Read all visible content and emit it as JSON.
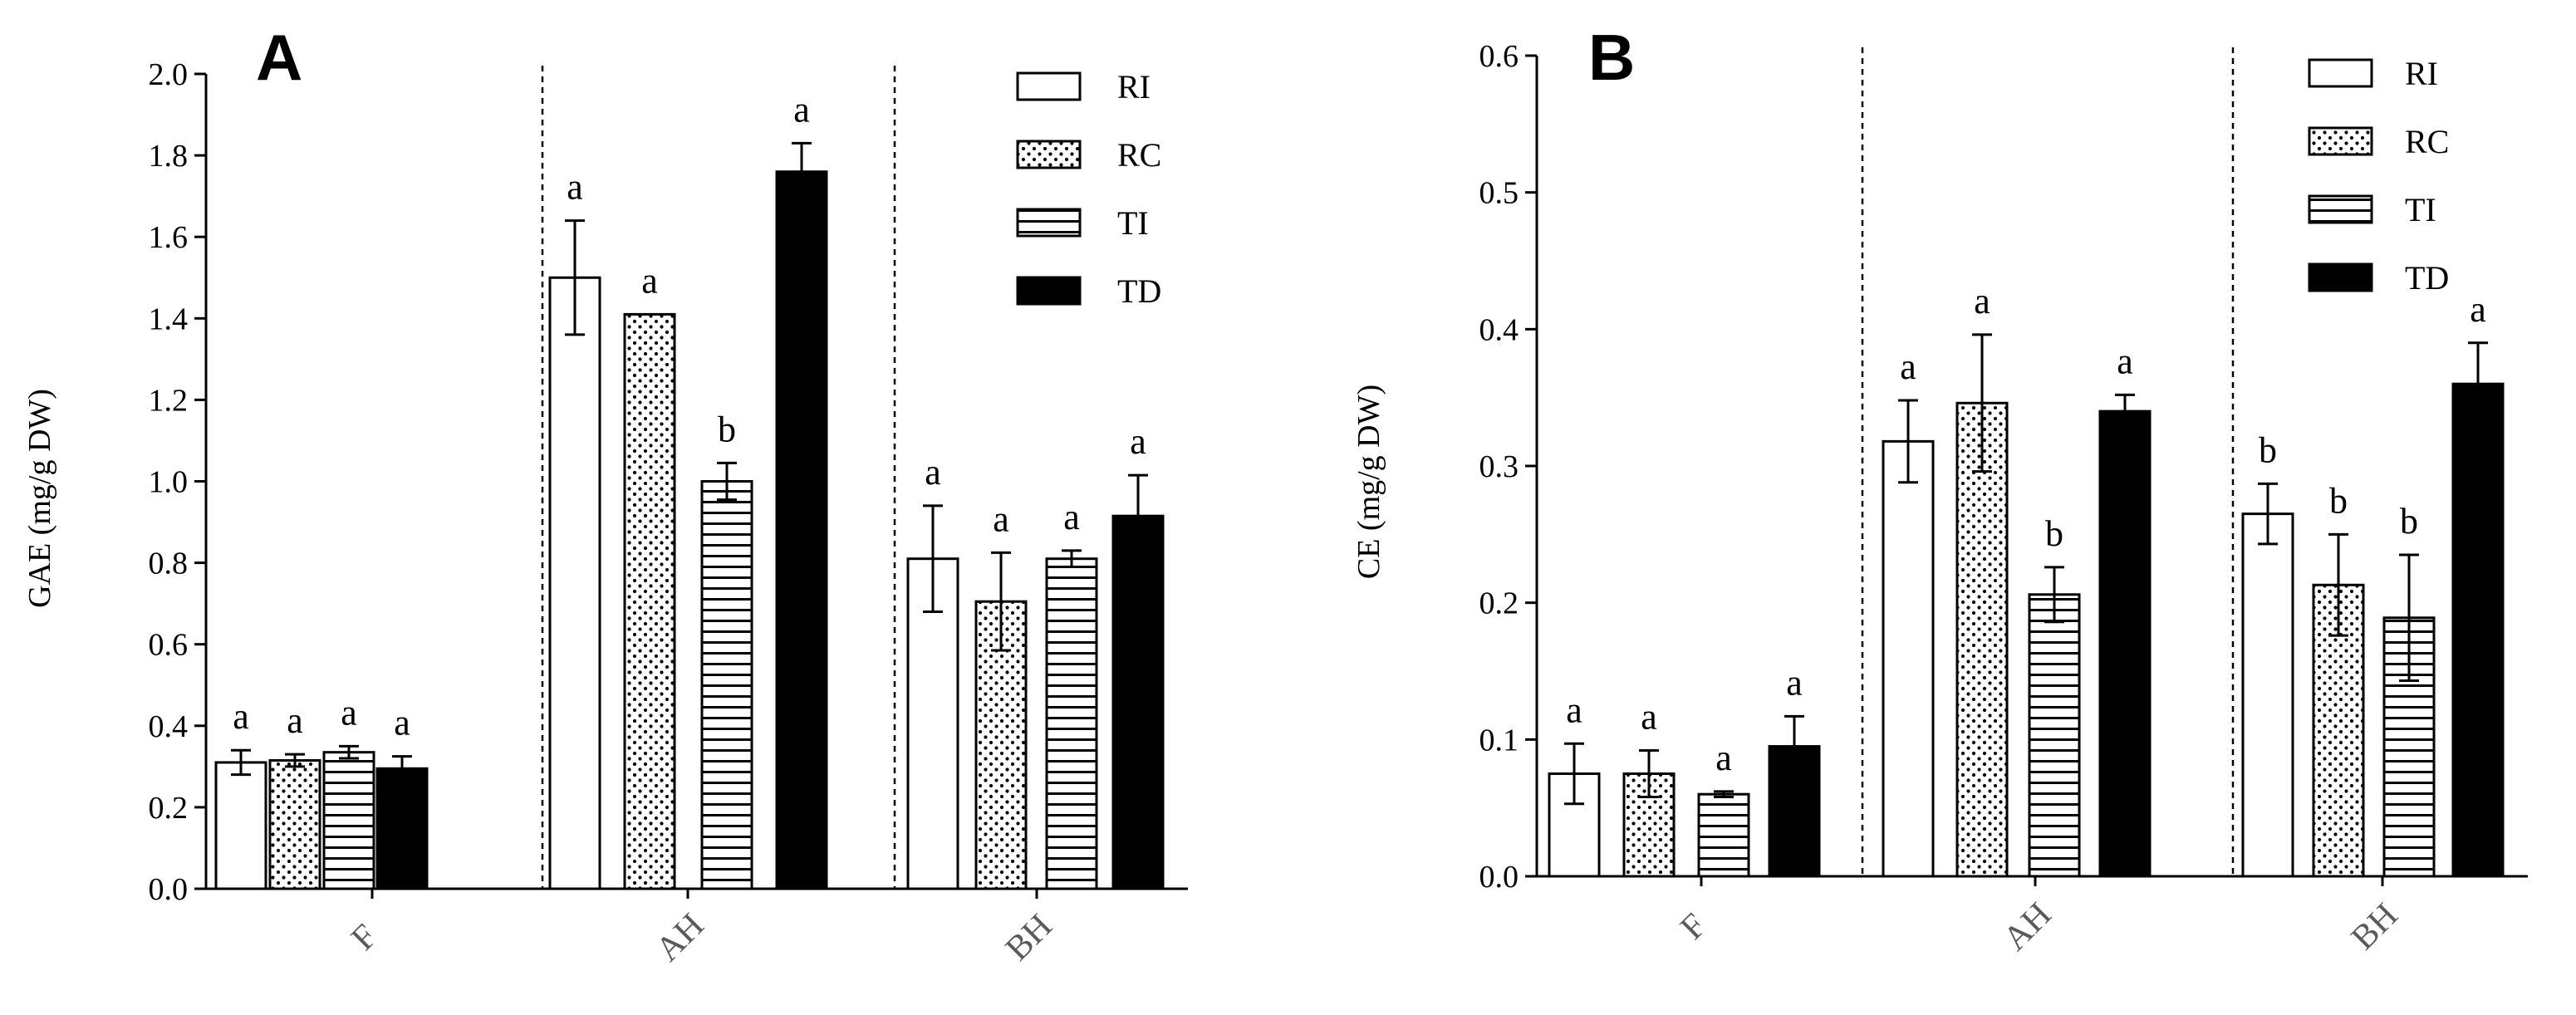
{
  "chart_data": [
    {
      "type": "bar",
      "panel": "A",
      "ylabel": "GAE (mg/g DW)",
      "ylim": [
        0,
        2.0
      ],
      "yticks": [
        "0.0",
        "0.2",
        "0.4",
        "0.6",
        "0.8",
        "1.0",
        "1.2",
        "1.4",
        "1.6",
        "1.8",
        "2.0"
      ],
      "categories": [
        "F",
        "AH",
        "BH"
      ],
      "series": [
        {
          "name": "RI",
          "values": [
            0.31,
            1.5,
            0.81
          ],
          "errors": [
            0.03,
            0.14,
            0.13
          ],
          "letters": [
            "a",
            "a",
            "a"
          ]
        },
        {
          "name": "RC",
          "values": [
            0.315,
            1.41,
            0.705
          ],
          "errors": [
            0.015,
            0.0,
            0.12
          ],
          "letters": [
            "a",
            "a",
            "a"
          ]
        },
        {
          "name": "TI",
          "values": [
            0.335,
            1.0,
            0.81
          ],
          "errors": [
            0.015,
            0.045,
            0.02
          ],
          "letters": [
            "a",
            "b",
            "a"
          ]
        },
        {
          "name": "TD",
          "values": [
            0.295,
            1.76,
            0.915
          ],
          "errors": [
            0.03,
            0.07,
            0.1
          ],
          "letters": [
            "a",
            "a",
            "a"
          ]
        }
      ]
    },
    {
      "type": "bar",
      "panel": "B",
      "ylabel": "CE (mg/g DW)",
      "ylim": [
        0,
        0.6
      ],
      "yticks": [
        "0.0",
        "0.1",
        "0.2",
        "0.3",
        "0.4",
        "0.5",
        "0.6"
      ],
      "categories": [
        "F",
        "AH",
        "BH"
      ],
      "series": [
        {
          "name": "RI",
          "values": [
            0.075,
            0.318,
            0.265
          ],
          "errors": [
            0.022,
            0.03,
            0.022
          ],
          "letters": [
            "a",
            "a",
            "b"
          ]
        },
        {
          "name": "RC",
          "values": [
            0.075,
            0.346,
            0.213
          ],
          "errors": [
            0.017,
            0.05,
            0.037
          ],
          "letters": [
            "a",
            "a",
            "b"
          ]
        },
        {
          "name": "TI",
          "values": [
            0.06,
            0.206,
            0.189
          ],
          "errors": [
            0.002,
            0.02,
            0.046
          ],
          "letters": [
            "a",
            "b",
            "b"
          ]
        },
        {
          "name": "TD",
          "values": [
            0.095,
            0.34,
            0.36
          ],
          "errors": [
            0.022,
            0.012,
            0.03
          ],
          "letters": [
            "a",
            "a",
            "a"
          ]
        }
      ]
    }
  ]
}
